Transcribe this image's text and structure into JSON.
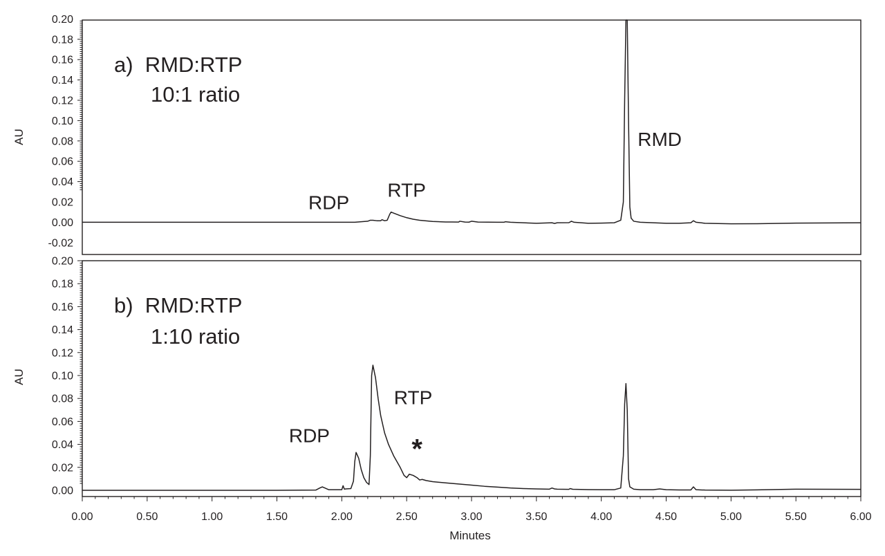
{
  "chart_data": [
    {
      "type": "line",
      "panel": "a",
      "title": "a)  RMD:RTP",
      "subtitle": "10:1 ratio",
      "xlabel": "",
      "ylabel": "AU",
      "xlim": [
        0,
        6
      ],
      "ylim": [
        -0.03,
        0.2
      ],
      "yticks": [
        "0.20",
        "0.18",
        "0.16",
        "0.14",
        "0.12",
        "0.10",
        "0.08",
        "0.06",
        "0.04",
        "0.02",
        "0.00",
        "-0.02"
      ],
      "yticks_values": [
        0.2,
        0.18,
        0.16,
        0.14,
        0.12,
        0.1,
        0.08,
        0.06,
        0.04,
        0.02,
        0.0,
        -0.02
      ],
      "grid": false,
      "annotations": [
        {
          "text": "RDP",
          "x": 1.9,
          "y": 0.013
        },
        {
          "text": "RTP",
          "x": 2.5,
          "y": 0.025
        },
        {
          "text": "RMD",
          "x": 4.45,
          "y": 0.075
        }
      ],
      "series": [
        {
          "x": [
            0,
            0.5,
            1.0,
            1.5,
            1.8,
            2.0,
            2.1,
            2.2,
            2.22,
            2.24,
            2.27,
            2.3,
            2.31,
            2.33,
            2.35,
            2.37,
            2.38,
            2.4,
            2.45,
            2.5,
            2.55,
            2.6,
            2.7,
            2.8,
            2.85,
            2.9,
            2.91,
            2.95,
            2.98,
            3.0,
            3.05,
            3.2,
            3.25,
            3.26,
            3.3,
            3.5,
            3.62,
            3.64,
            3.66,
            3.75,
            3.77,
            3.79,
            3.9,
            4.0,
            4.1,
            4.15,
            4.17,
            4.18,
            4.19,
            4.2,
            4.21,
            4.22,
            4.23,
            4.25,
            4.3,
            4.4,
            4.5,
            4.6,
            4.69,
            4.71,
            4.73,
            4.8,
            5.0,
            5.2,
            5.5,
            6.0
          ],
          "y": [
            0,
            0,
            0,
            0,
            0,
            0,
            0,
            0.001,
            0.002,
            0.002,
            0.0015,
            0.0015,
            0.0025,
            0.0015,
            0.002,
            0.008,
            0.01,
            0.009,
            0.0065,
            0.0045,
            0.003,
            0.002,
            0.0008,
            0.0003,
            0.0003,
            0.0002,
            0.001,
            0.0002,
            0.0001,
            0.001,
            0.0002,
            0,
            0,
            0.0005,
            0,
            -0.001,
            -0.0005,
            -0.0012,
            -0.0005,
            -0.0004,
            0.001,
            0,
            -0.001,
            -0.0008,
            -0.0005,
            0.002,
            0.02,
            0.12,
            0.22,
            0.22,
            0.1,
            0.015,
            0.004,
            0.001,
            0,
            -0.0005,
            -0.001,
            -0.001,
            -0.0005,
            0.0015,
            0,
            -0.001,
            -0.0015,
            -0.0014,
            -0.0008,
            -0.0005
          ]
        }
      ]
    },
    {
      "type": "line",
      "panel": "b",
      "title": "b)  RMD:RTP",
      "subtitle": "1:10 ratio",
      "xlabel": "Minutes",
      "ylabel": "AU",
      "xlim": [
        0,
        6
      ],
      "xticks": [
        "0.00",
        "0.50",
        "1.00",
        "1.50",
        "2.00",
        "2.50",
        "3.00",
        "3.50",
        "4.00",
        "4.50",
        "5.00",
        "5.50",
        "6.00"
      ],
      "xticks_values": [
        0,
        0.5,
        1,
        1.5,
        2,
        2.5,
        3,
        3.5,
        4,
        4.5,
        5,
        5.5,
        6
      ],
      "ylim": [
        -0.01,
        0.2
      ],
      "yticks": [
        "0.20",
        "0.18",
        "0.16",
        "0.14",
        "0.12",
        "0.10",
        "0.08",
        "0.06",
        "0.04",
        "0.02",
        "0.00"
      ],
      "yticks_values": [
        0.2,
        0.18,
        0.16,
        0.14,
        0.12,
        0.1,
        0.08,
        0.06,
        0.04,
        0.02,
        0.0
      ],
      "grid": false,
      "annotations": [
        {
          "text": "RDP",
          "x": 1.75,
          "y": 0.042
        },
        {
          "text": "RTP",
          "x": 2.55,
          "y": 0.075
        },
        {
          "text": "*",
          "x": 2.58,
          "y": 0.028
        }
      ],
      "series": [
        {
          "x": [
            0,
            0.5,
            1.0,
            1.5,
            1.8,
            1.83,
            1.85,
            1.87,
            1.9,
            2.0,
            2.01,
            2.02,
            2.03,
            2.07,
            2.09,
            2.1,
            2.11,
            2.13,
            2.15,
            2.17,
            2.19,
            2.21,
            2.22,
            2.23,
            2.24,
            2.26,
            2.28,
            2.3,
            2.33,
            2.36,
            2.4,
            2.45,
            2.48,
            2.5,
            2.52,
            2.55,
            2.58,
            2.6,
            2.62,
            2.65,
            2.7,
            2.8,
            2.9,
            3.0,
            3.1,
            3.2,
            3.3,
            3.4,
            3.5,
            3.6,
            3.62,
            3.64,
            3.66,
            3.75,
            3.76,
            3.78,
            3.9,
            4.0,
            4.1,
            4.15,
            4.17,
            4.18,
            4.19,
            4.2,
            4.21,
            4.22,
            4.25,
            4.3,
            4.4,
            4.45,
            4.5,
            4.6,
            4.69,
            4.71,
            4.73,
            4.8,
            5.0,
            5.2,
            5.5,
            6.0
          ],
          "y": [
            0,
            0,
            0,
            0,
            0.0002,
            0.002,
            0.003,
            0.002,
            0.0005,
            0.0005,
            0.004,
            0.001,
            0.0012,
            0.0015,
            0.008,
            0.025,
            0.033,
            0.028,
            0.018,
            0.011,
            0.007,
            0.005,
            0.03,
            0.1,
            0.109,
            0.098,
            0.08,
            0.065,
            0.05,
            0.04,
            0.03,
            0.02,
            0.013,
            0.011,
            0.014,
            0.013,
            0.011,
            0.009,
            0.0095,
            0.0085,
            0.0075,
            0.0065,
            0.0055,
            0.0045,
            0.0035,
            0.0028,
            0.002,
            0.0015,
            0.0012,
            0.001,
            0.002,
            0.0012,
            0.001,
            0.0008,
            0.0015,
            0.0009,
            0.0006,
            0.0005,
            0.0005,
            0.002,
            0.03,
            0.075,
            0.093,
            0.07,
            0.01,
            0.003,
            0.001,
            0.0005,
            0.0005,
            0.0012,
            0.0005,
            0.0003,
            0.0003,
            0.003,
            0.0005,
            0.0002,
            0.0001,
            0.0004,
            0.001,
            0.0008
          ]
        }
      ]
    }
  ]
}
